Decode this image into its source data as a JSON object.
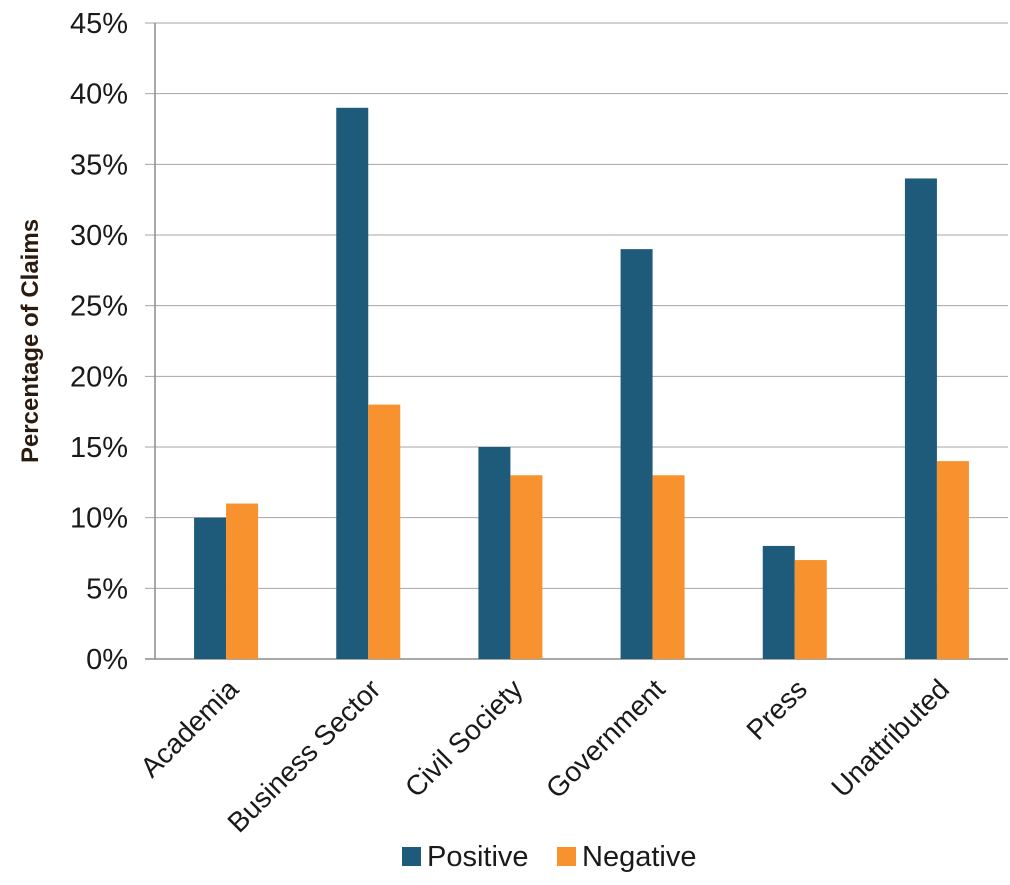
{
  "chart_data": {
    "type": "bar",
    "categories": [
      "Academia",
      "Business Sector",
      "Civil Society",
      "Government",
      "Press",
      "Unattributed"
    ],
    "series": [
      {
        "name": "Positive",
        "color": "#1e5a7a",
        "values": [
          10,
          39,
          15,
          29,
          8,
          34
        ]
      },
      {
        "name": "Negative",
        "color": "#f7922e",
        "values": [
          11,
          18,
          13,
          13,
          7,
          14
        ]
      }
    ],
    "title": "",
    "xlabel": "",
    "ylabel": "Percentage of Claims",
    "ylim": [
      0,
      45
    ],
    "yticks": [
      "0%",
      "5%",
      "10%",
      "15%",
      "20%",
      "25%",
      "30%",
      "35%",
      "40%",
      "45%"
    ],
    "grid": true,
    "legend_position": "bottom"
  }
}
